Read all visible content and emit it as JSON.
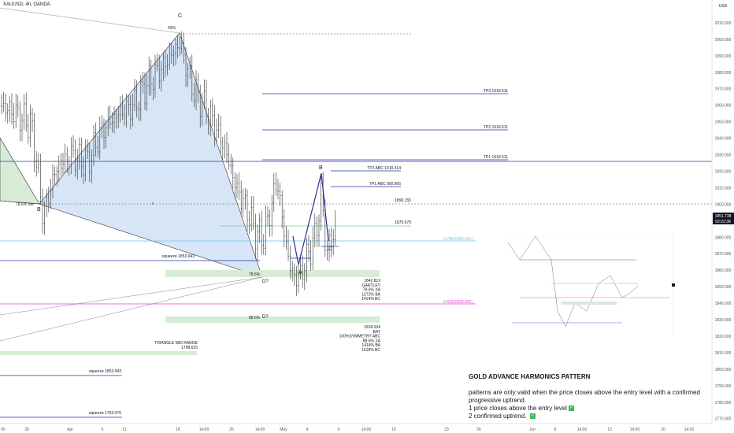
{
  "header": {
    "symbol": "XAUUSD, 4h, OANDA"
  },
  "axis": {
    "currency": "USD",
    "y_ticks": [
      "2010.000",
      "2000.000",
      "1990.000",
      "1980.000",
      "1970.000",
      "1960.000",
      "1950.000",
      "1940.000",
      "1930.000",
      "1920.000",
      "1910.000",
      "1900.000",
      "1890.000",
      "1880.000",
      "1870.000",
      "1860.000",
      "1850.000",
      "1840.000",
      "1830.000",
      "1820.000",
      "1810.000",
      "1800.000",
      "1790.000",
      "1780.000",
      "1770.000"
    ],
    "y_range": [
      1767,
      2020
    ],
    "x_ticks": [
      "00",
      "28",
      "Apr",
      "6",
      "11",
      "18",
      "14:00",
      "25",
      "14:00",
      "May",
      "4",
      "9",
      "14:00",
      "16",
      "23",
      "26",
      "Jun",
      "6",
      "14:00",
      "13",
      "14:00",
      "20",
      "14:00"
    ],
    "last_price": "1851.738",
    "countdown": "02:22:38"
  },
  "annotations": {
    "points": {
      "C": "C",
      "B": "B",
      "A": "A",
      "B2": "B",
      "C2": "C",
      "D1": "D?",
      "D2": "D?"
    },
    "pct_50": "50%",
    "pct_786": "78.6% retr",
    "pct_786_d": "78.6%",
    "pct_886": "88.6%",
    "tp3": "TP3 1918.511",
    "tp2": "TP2 1918.511",
    "tp1": "TP1 1918.511",
    "tp2_abc": "TP2 ABC 1910.414",
    "tp1_abc": "TP1 ABC 900.665",
    "lvl_1890": "1890.155",
    "lvl_1875": "1875.670",
    "fib_786": "0.786(1866.151)",
    "fib_618": "0.618(1829.802)",
    "squeeze_1": "squeeze 1853.943",
    "squeeze_2": "squeeze 1853.943",
    "squeeze_3": "squeeze 1753.070",
    "triangle": [
      "TRIANGLE MID RANGE",
      "1798.625"
    ],
    "gartley": [
      "1842.819",
      "GARTLEY",
      "78.6% XA",
      "1272% BA",
      "1414% BC"
    ],
    "bat": [
      "1818.034",
      "BAT",
      "100%SYMMETRY ABC",
      "88.6% XA",
      "1414% BA",
      "1618% BC"
    ]
  },
  "note": {
    "title": "GOLD ADVANCE HARMONICS PATTERN",
    "line1": "patterns are only valid when the price closes above the entry level with a confirmed progressive uptrend.",
    "line2": "1 price closes above the entry level",
    "line3": "2 confirmed uptrend.",
    "check": "✓"
  },
  "colors": {
    "blue_fill": "#cfe2f6",
    "green_fill": "#d6ecd5",
    "tp_line": "#2a2fa8",
    "fib_blue": "#6ec3f0",
    "fib_pink": "#e040c8",
    "price_badge": "#131722"
  },
  "chart_data": {
    "type": "candlestick",
    "instrument": "XAUUSD",
    "timeframe": "4h",
    "ylim": [
      1767,
      2020
    ],
    "pattern_points": {
      "C": 2000,
      "B": 1888,
      "A": 1852,
      "B2": 1910,
      "C2": 1869
    },
    "levels": [
      {
        "name": "TP3",
        "value": 1918.511
      },
      {
        "name": "TP2",
        "value": 1918.511
      },
      {
        "name": "TP1",
        "value": 1918.511
      },
      {
        "name": "TP2 ABC",
        "value": 1910.414
      },
      {
        "name": "TP1 ABC",
        "value": 900.665
      },
      {
        "name": "1890.155",
        "value": 1890.155
      },
      {
        "name": "1875.670",
        "value": 1875.67
      },
      {
        "name": "0.786",
        "value": 1866.151
      },
      {
        "name": "0.618",
        "value": 1829.802
      },
      {
        "name": "squeeze",
        "value": 1853.943
      },
      {
        "name": "squeeze",
        "value": 1753.07
      },
      {
        "name": "TRIANGLE MID RANGE",
        "value": 1798.625
      }
    ],
    "last_price": 1851.738
  }
}
